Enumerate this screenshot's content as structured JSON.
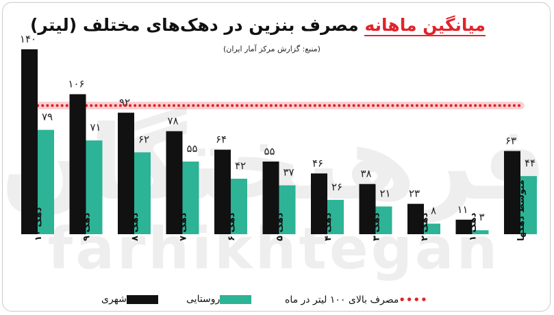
{
  "header": {
    "title_highlight": "میانگین ماهانه",
    "title_rest": "مصرف بنزین در دهک‌های مختلف (لیتر)",
    "source": "(منبع: گزارش مرکز آمار ایران)"
  },
  "watermark": {
    "persian": "فرهیختگان",
    "latin": "farhikhtegan"
  },
  "colors": {
    "urban": "#111111",
    "rural": "#2db395",
    "threshold": "#e2232a"
  },
  "chart_data": {
    "type": "bar",
    "categories": [
      "دهک ۱۰",
      "دهک ۹",
      "دهک ۸",
      "دهک ۷",
      "دهک ۶",
      "دهک ۵",
      "دهک ۴",
      "دهک ۳",
      "دهک ۲",
      "دهک ۱",
      "متوسط دهکها"
    ],
    "series": [
      {
        "name": "شهری",
        "values": [
          140,
          106,
          92,
          78,
          64,
          55,
          46,
          38,
          23,
          11,
          63
        ],
        "labels": [
          "۱۴۰",
          "۱۰۶",
          "۹۲",
          "۷۸",
          "۶۴",
          "۵۵",
          "۴۶",
          "۳۸",
          "۲۳",
          "۱۱",
          "۶۳"
        ]
      },
      {
        "name": "روستایی",
        "values": [
          79,
          71,
          62,
          55,
          42,
          37,
          26,
          21,
          8,
          3,
          44
        ],
        "labels": [
          "۷۹",
          "۷۱",
          "۶۲",
          "۵۵",
          "۴۲",
          "۳۷",
          "۲۶",
          "۲۱",
          "۸",
          "۳",
          "۴۴"
        ]
      }
    ],
    "reference_line": {
      "name": "مصرف بالای ۱۰۰ لیتر در ماه",
      "value": 100
    },
    "ylim": [
      0,
      140
    ],
    "xlabel": "",
    "ylabel": "",
    "grid": false,
    "legend": "bottom"
  }
}
